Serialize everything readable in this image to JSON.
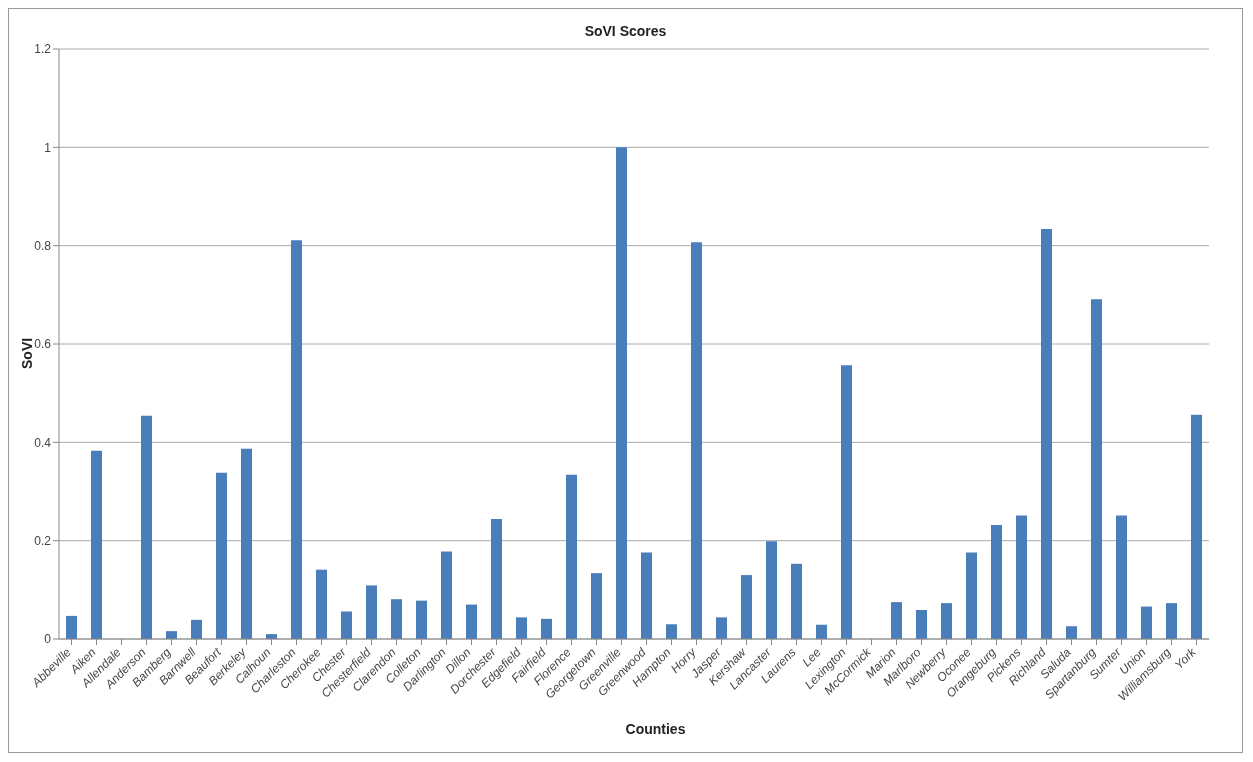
{
  "chart_data": {
    "type": "bar",
    "title": "SoVI Scores",
    "xlabel": "Counties",
    "ylabel": "SoVI",
    "categories": [
      "Abbeville",
      "Aiken",
      "Allendale",
      "Anderson",
      "Bamberg",
      "Barnwell",
      "Beaufort",
      "Berkeley",
      "Calhoun",
      "Charleston",
      "Cherokee",
      "Chester",
      "Chesterfield",
      "Clarendon",
      "Colleton",
      "Darlington",
      "Dillon",
      "Dorchester",
      "Edgefield",
      "Fairfield",
      "Florence",
      "Georgetown",
      "Greenville",
      "Greenwood",
      "Hampton",
      "Horry",
      "Jasper",
      "Kershaw",
      "Lancaster",
      "Laurens",
      "Lee",
      "Lexington",
      "McCormick",
      "Marion",
      "Marlboro",
      "Newberry",
      "Oconee",
      "Orangeburg",
      "Pickens",
      "Richland",
      "Saluda",
      "Spartanburg",
      "Sumter",
      "Union",
      "Williamsburg",
      "York"
    ],
    "values": [
      0.047,
      0.383,
      0,
      0.454,
      0.016,
      0.039,
      0.338,
      0.387,
      0.01,
      0.811,
      0.141,
      0.056,
      0.109,
      0.081,
      0.078,
      0.178,
      0.07,
      0.244,
      0.044,
      0.041,
      0.334,
      0.134,
      1.0,
      0.176,
      0.03,
      0.807,
      0.044,
      0.13,
      0.199,
      0.153,
      0.029,
      0.557,
      0,
      0.075,
      0.059,
      0.073,
      0.176,
      0.232,
      0.251,
      0.834,
      0.026,
      0.691,
      0.251,
      0.066,
      0.073,
      0.456
    ],
    "color": "#4a7ebb",
    "ylim": [
      0,
      1.2
    ],
    "yticks": [
      0,
      0.2,
      0.4,
      0.6,
      0.8,
      1,
      1.2
    ],
    "grid": "y",
    "legend": false
  }
}
